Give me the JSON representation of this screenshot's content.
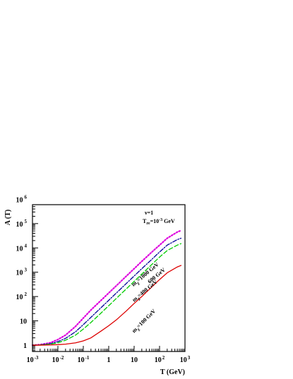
{
  "chart_data": {
    "type": "line",
    "xlabel": "T (GeV)",
    "ylabel": "A (T)",
    "x_scale": "log",
    "y_scale": "log",
    "xlim": [
      0.001,
      1000
    ],
    "ylim": [
      0.55,
      600000
    ],
    "x_ticks": [
      {
        "value": 0.001,
        "base": "10",
        "exp": "-3"
      },
      {
        "value": 0.01,
        "base": "10",
        "exp": "-2"
      },
      {
        "value": 0.1,
        "base": "10",
        "exp": "-1"
      },
      {
        "value": 1,
        "base": "1",
        "exp": ""
      },
      {
        "value": 10,
        "base": "10",
        "exp": ""
      },
      {
        "value": 100,
        "base": "10",
        "exp": "2"
      },
      {
        "value": 1000,
        "base": "10",
        "exp": "3"
      }
    ],
    "y_ticks": [
      {
        "value": 1,
        "base": "1",
        "exp": ""
      },
      {
        "value": 10,
        "base": "10",
        "exp": ""
      },
      {
        "value": 100,
        "base": "10",
        "exp": "2"
      },
      {
        "value": 1000,
        "base": "10",
        "exp": "3"
      },
      {
        "value": 10000,
        "base": "10",
        "exp": "4"
      },
      {
        "value": 100000,
        "base": "10",
        "exp": "5"
      },
      {
        "value": 1000000,
        "base": "10",
        "exp": "6"
      }
    ],
    "annotations": {
      "nu": "ν=1",
      "t_label_main": "T",
      "t_label_sub": "re",
      "t_label_rest": "=10",
      "t_label_exp": "-3",
      "t_label_unit": " GeV"
    },
    "curve_labels": [
      {
        "main": "m",
        "sub": "χ",
        "rest": "=1000 GeV"
      },
      {
        "main": "",
        "sub": "",
        "rest": "600 GeV"
      },
      {
        "main": "m",
        "sub": "χ",
        "rest": "=400 GeV"
      },
      {
        "main": "m",
        "sub": "χ",
        "rest": "=100 GeV"
      }
    ],
    "x": [
      0.001,
      0.002,
      0.005,
      0.01,
      0.02,
      0.05,
      0.1,
      0.2,
      0.5,
      1,
      2,
      5,
      10,
      20,
      50,
      100,
      200,
      500,
      700
    ],
    "series": [
      {
        "color": "#dd00dd",
        "dash": "dotted",
        "values": [
          1.0,
          1.05,
          1.25,
          1.7,
          2.6,
          6.0,
          13,
          28,
          70,
          140,
          280,
          700,
          1400,
          2800,
          6800,
          13000,
          25000,
          45000,
          52000
        ]
      },
      {
        "color": "#000099",
        "dash": "dashdot",
        "values": [
          1.0,
          1.03,
          1.15,
          1.4,
          1.9,
          3.6,
          7.0,
          14,
          35,
          70,
          140,
          350,
          700,
          1400,
          3400,
          6800,
          13000,
          22000,
          25000
        ]
      },
      {
        "color": "#00cc00",
        "dash": "dashed",
        "values": [
          1.0,
          1.02,
          1.1,
          1.25,
          1.6,
          2.6,
          4.6,
          8.6,
          21,
          42,
          84,
          210,
          420,
          840,
          2100,
          4200,
          7800,
          13000,
          15000
        ]
      },
      {
        "color": "#dd0000",
        "dash": "solid",
        "values": [
          1.0,
          1.0,
          1.02,
          1.05,
          1.1,
          1.25,
          1.5,
          2.0,
          3.8,
          6.3,
          11,
          26,
          52,
          100,
          250,
          500,
          950,
          1650,
          1900
        ]
      }
    ]
  }
}
